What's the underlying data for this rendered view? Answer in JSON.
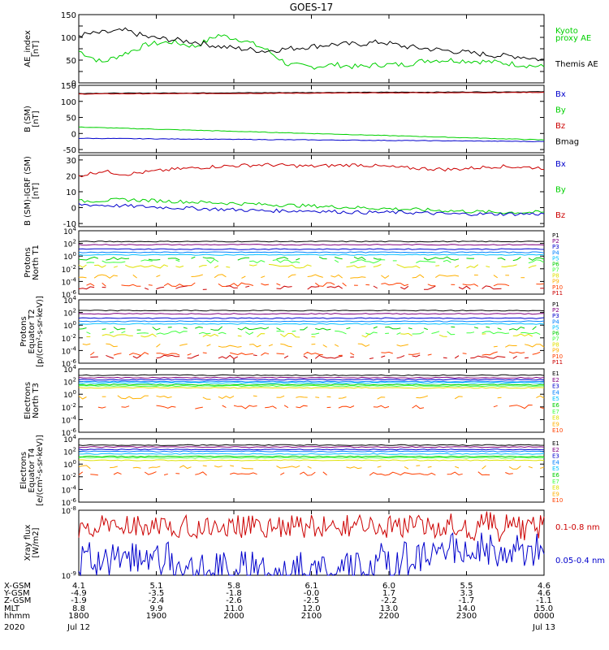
{
  "title": "GOES-17",
  "charts_layout_order": [
    "ae",
    "b",
    "bd",
    "pn",
    "pe",
    "en",
    "ee",
    "xr"
  ],
  "colors": {
    "black": "#000000",
    "green": "#00d000",
    "blue": "#0000cc",
    "red": "#cc0000",
    "p_list": [
      "#000000",
      "#800080",
      "#0000cc",
      "#0080ff",
      "#00c0ff",
      "#00d000",
      "#40ff40",
      "#e0e000",
      "#ffb000",
      "#ff4000",
      "#cc0000"
    ]
  },
  "chart_data": [
    {
      "id": "ae",
      "type": "line",
      "ylabel": [
        "AE_index",
        "[nT]"
      ],
      "ylim": [
        0,
        150
      ],
      "yticks": [
        0,
        25,
        50,
        75,
        100,
        125,
        150
      ],
      "ytick_labels": [
        "0",
        "",
        "50",
        "",
        "100",
        "",
        "150"
      ],
      "ylog": false,
      "legend": [
        {
          "text": "Kyoto",
          "color": "#00d000"
        },
        {
          "text": "proxy AE",
          "color": "#00d000"
        },
        {
          "text": "",
          "color": "#000000"
        },
        {
          "text": "Themis AE",
          "color": "#000000"
        }
      ],
      "series": [
        {
          "name": "Kyoto proxy AE",
          "color": "#00d000",
          "x": [
            0,
            0.05,
            0.1,
            0.15,
            0.2,
            0.25,
            0.3,
            0.35,
            0.4,
            0.45,
            0.5,
            0.55,
            0.6,
            0.65,
            0.7,
            0.75,
            0.8,
            0.85,
            0.9,
            0.95,
            1
          ],
          "y": [
            70,
            45,
            65,
            85,
            90,
            80,
            105,
            95,
            75,
            40,
            35,
            40,
            35,
            40,
            40,
            50,
            50,
            48,
            45,
            40,
            35
          ]
        },
        {
          "name": "Themis AE",
          "color": "#000000",
          "x": [
            0,
            0.05,
            0.1,
            0.15,
            0.2,
            0.25,
            0.3,
            0.35,
            0.4,
            0.45,
            0.5,
            0.55,
            0.6,
            0.65,
            0.7,
            0.75,
            0.8,
            0.85,
            0.9,
            0.95,
            1
          ],
          "y": [
            105,
            110,
            115,
            100,
            95,
            90,
            80,
            75,
            70,
            75,
            80,
            85,
            85,
            90,
            80,
            75,
            70,
            65,
            60,
            58,
            50
          ]
        }
      ]
    },
    {
      "id": "b",
      "type": "line",
      "ylabel": [
        "B (SM)",
        "[nT]"
      ],
      "ylim": [
        -60,
        150
      ],
      "yticks": [
        -50,
        0,
        50,
        100,
        150
      ],
      "ytick_labels": [
        "-50",
        "0",
        "50",
        "100",
        "150"
      ],
      "ylog": false,
      "legend": [
        {
          "text": "Bx",
          "color": "#0000cc"
        },
        {
          "text": "By",
          "color": "#00d000"
        },
        {
          "text": "Bz",
          "color": "#cc0000"
        },
        {
          "text": "Bmag",
          "color": "#000000"
        }
      ],
      "series": [
        {
          "name": "Bmag",
          "color": "#000000",
          "x": [
            0,
            1
          ],
          "y": [
            125,
            130
          ]
        },
        {
          "name": "Bz",
          "color": "#cc0000",
          "x": [
            0,
            1
          ],
          "y": [
            123,
            128
          ]
        },
        {
          "name": "By",
          "color": "#00d000",
          "x": [
            0,
            1
          ],
          "y": [
            20,
            -20
          ]
        },
        {
          "name": "Bx",
          "color": "#0000cc",
          "x": [
            0,
            1
          ],
          "y": [
            -15,
            -25
          ]
        }
      ]
    },
    {
      "id": "bd",
      "type": "line",
      "ylabel": [
        "B (SM)-IGRF (SM)",
        "[nT]"
      ],
      "ylim": [
        -12,
        33
      ],
      "yticks": [
        -10,
        0,
        10,
        20,
        30
      ],
      "ytick_labels": [
        "-10",
        "0",
        "10",
        "20",
        "30"
      ],
      "ylog": false,
      "legend": [
        {
          "text": "Bx",
          "color": "#0000cc"
        },
        {
          "text": "By",
          "color": "#00d000"
        },
        {
          "text": "Bz",
          "color": "#cc0000"
        }
      ],
      "series": [
        {
          "name": "Bz",
          "color": "#cc0000",
          "x": [
            0,
            0.05,
            0.1,
            0.2,
            0.3,
            0.4,
            0.5,
            0.6,
            0.7,
            0.8,
            0.9,
            1
          ],
          "y": [
            20,
            23,
            21,
            24,
            26,
            27,
            26,
            27,
            25,
            24,
            26,
            25
          ]
        },
        {
          "name": "By",
          "color": "#00d000",
          "x": [
            0,
            0.1,
            0.2,
            0.3,
            0.4,
            0.5,
            0.6,
            0.7,
            0.8,
            0.9,
            1
          ],
          "y": [
            4,
            5,
            4,
            3,
            2,
            1,
            0,
            -1,
            -2,
            -3,
            -3
          ]
        },
        {
          "name": "Bx",
          "color": "#0000cc",
          "x": [
            0,
            0.1,
            0.2,
            0.3,
            0.4,
            0.5,
            0.6,
            0.7,
            0.8,
            0.9,
            1
          ],
          "y": [
            2,
            1,
            0,
            -1,
            -2,
            -2,
            -3,
            -3,
            -4,
            -4,
            -4
          ]
        }
      ]
    },
    {
      "id": "pn",
      "type": "line",
      "ylabel": [
        "Protons",
        "North T1"
      ],
      "ylim": [
        -6,
        4
      ],
      "ylog": true,
      "ytick_labels": [
        "10^-6",
        "10^-4",
        "10^-2",
        "10^0",
        "10^2",
        "10^4"
      ],
      "legend_list": [
        "P1",
        "P2",
        "P3",
        "P4",
        "P5",
        "P6",
        "P7",
        "P8",
        "P9",
        "P10",
        "P11"
      ],
      "levels": [
        2.3,
        1.8,
        1.1,
        0.6,
        0.2,
        -0.4,
        -0.8,
        -1.6,
        -3.2,
        -4.5,
        -5
      ]
    },
    {
      "id": "pe",
      "type": "line",
      "ylabel": [
        "Protons",
        "Equator T2",
        "[p/(cm²-s-sr-keV)]"
      ],
      "ylim": [
        -6,
        4
      ],
      "ylog": true,
      "ytick_labels": [
        "10^-6",
        "10^-4",
        "10^-2",
        "10^0",
        "10^2",
        "10^4"
      ],
      "legend_list": [
        "P1",
        "P2",
        "P3",
        "P4",
        "P5",
        "P6",
        "P7",
        "P8",
        "P9",
        "P10",
        "P11"
      ],
      "levels": [
        2.3,
        1.8,
        1.1,
        0.6,
        0.2,
        -0.5,
        -1.2,
        -1.6,
        -3.2,
        -4.5,
        -5
      ]
    },
    {
      "id": "en",
      "type": "line",
      "ylabel": [
        "Electrons",
        "North T3"
      ],
      "ylim": [
        -6,
        4
      ],
      "ylog": true,
      "ytick_labels": [
        "10^-6",
        "10^-4",
        "10^-2",
        "10^0",
        "10^2",
        "10^4"
      ],
      "legend_list": [
        "E1",
        "E2",
        "E3",
        "E4",
        "E5",
        "E6",
        "E7",
        "E8",
        "E9",
        "E10"
      ],
      "levels": [
        3,
        2.6,
        2.3,
        2.0,
        1.8,
        1.5,
        1.3,
        1.0,
        -0.5,
        -2
      ]
    },
    {
      "id": "ee",
      "type": "line",
      "ylabel": [
        "Electrons",
        "Equator T4",
        "[e/(cm²-s-sr-keV)]"
      ],
      "ylim": [
        -6,
        4
      ],
      "ylog": true,
      "ytick_labels": [
        "10^-6",
        "10^-4",
        "10^-2",
        "10^0",
        "10^2",
        "10^4"
      ],
      "legend_list": [
        "E1",
        "E2",
        "E3",
        "E4",
        "E5",
        "E6",
        "E7",
        "E8",
        "E9",
        "E10"
      ],
      "levels": [
        3,
        2.7,
        2.3,
        2.0,
        1.6,
        1.2,
        1.0,
        0.6,
        -0.5,
        -1.5
      ]
    },
    {
      "id": "xr",
      "type": "line",
      "ylabel": [
        "Xray flux",
        "[W/m2]"
      ],
      "ylim": [
        -9,
        -8
      ],
      "ylog": true,
      "ytick_labels": [
        "10^-9",
        "10^-8"
      ],
      "legend": [
        {
          "text": "0.1-0.8 nm",
          "color": "#cc0000"
        },
        {
          "text": "0.05-0.4 nm",
          "color": "#0000cc"
        }
      ]
    }
  ],
  "x_axis": {
    "rows": [
      {
        "label": "X-GSM",
        "values": [
          "4.1",
          "5.1",
          "5.8",
          "6.1",
          "6.0",
          "5.5",
          "4.6"
        ]
      },
      {
        "label": "Y-GSM",
        "values": [
          "-4.9",
          "-3.5",
          "-1.8",
          "-0.0",
          "1.7",
          "3.3",
          "4.6"
        ]
      },
      {
        "label": "Z-GSM",
        "values": [
          "-1.9",
          "-2.4",
          "-2.6",
          "-2.5",
          "-2.2",
          "-1.7",
          "-1.1"
        ]
      },
      {
        "label": "MLT",
        "values": [
          "8.8",
          "9.9",
          "11.0",
          "12.0",
          "13.0",
          "14.0",
          "15.0"
        ]
      },
      {
        "label": "hhmm",
        "values": [
          "1800",
          "1900",
          "2000",
          "2100",
          "2200",
          "2300",
          "0000"
        ]
      }
    ],
    "year": "2020",
    "date_start": "Jul 12",
    "date_end": "Jul 13"
  }
}
